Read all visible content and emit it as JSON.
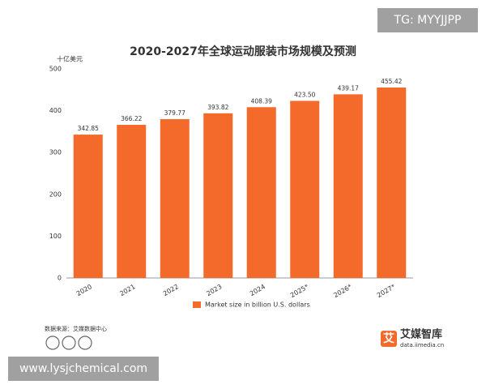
{
  "chart_data": {
    "type": "bar",
    "title": "2020-2027年全球运动服装市场规模及预测",
    "y_label": "十亿美元",
    "categories": [
      "2020",
      "2021",
      "2022",
      "2023",
      "2024",
      "2025*",
      "2026*",
      "2027*"
    ],
    "series": [
      {
        "name": "Market size in billion U.S. dollars",
        "color": "#f46a2b",
        "values": [
          342.85,
          366.22,
          379.77,
          393.82,
          408.39,
          423.5,
          439.17,
          455.42
        ],
        "value_labels": [
          "342.85",
          "366.22",
          "379.77",
          "393.82",
          "408.39",
          "423.50",
          "439.17",
          "455.42"
        ]
      }
    ],
    "ylim": [
      0,
      500
    ],
    "yticks": [
      0,
      100,
      200,
      300,
      400,
      500
    ],
    "grid": false
  },
  "source": "数据来源：艾媒数据中心",
  "logo": {
    "icon": "艾",
    "name": "艾媒智库",
    "url": "data.iimedia.cn"
  },
  "watermarks": [
    "TG: MYYJJPP",
    "www.lysjchemical.com"
  ]
}
